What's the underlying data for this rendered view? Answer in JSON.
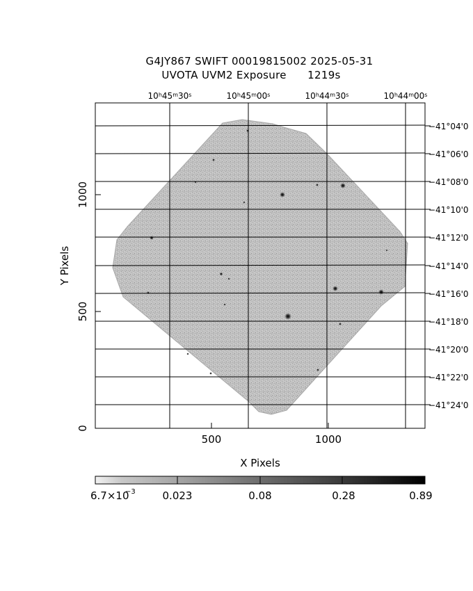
{
  "header": {
    "line1": "G4JY867 SWIFT 00019815002 2025-05-31",
    "line2": "UVOTA UVM2 Exposure      1219s"
  },
  "axes": {
    "xlabel": "X Pixels",
    "ylabel": "Y Pixels",
    "x_ticks": [
      "500",
      "1000"
    ],
    "y_ticks": [
      "0",
      "500",
      "1000"
    ]
  },
  "ra_ticks": [
    {
      "h": "10",
      "m": "45",
      "s": "30"
    },
    {
      "h": "10",
      "m": "45",
      "s": "00"
    },
    {
      "h": "10",
      "m": "44",
      "s": "30"
    },
    {
      "h": "10",
      "m": "44",
      "s": "00"
    }
  ],
  "dec_ticks": [
    "−41°04'0",
    "−41°06'0",
    "−41°08'0",
    "−41°10'0",
    "−41°12'0",
    "−41°14'0",
    "−41°16'0",
    "−41°18'0",
    "−41°20'0",
    "−41°22'0",
    "−41°24'0"
  ],
  "colorbar": {
    "ticks": [
      "6.7×10",
      "0.023",
      "0.08",
      "0.28",
      "0.89"
    ],
    "exponent": "−3"
  },
  "image": {
    "exposure_fill": "#b9b9b9",
    "frame_color": "#000000"
  }
}
